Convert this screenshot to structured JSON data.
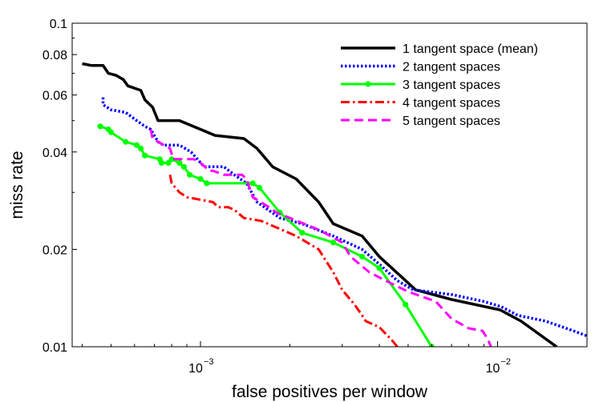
{
  "chart_data": {
    "type": "line",
    "xlabel": "false positives per window",
    "ylabel": "miss rate",
    "xscale": "log",
    "yscale": "log",
    "xlim": [
      0.00037,
      0.02
    ],
    "ylim": [
      0.01,
      0.1
    ],
    "x_ticks": [
      {
        "value": 0.001,
        "label": "10",
        "exp": "−3"
      },
      {
        "value": 0.01,
        "label": "10",
        "exp": "−2"
      }
    ],
    "y_ticks": [
      {
        "value": 0.01,
        "label": "0.01"
      },
      {
        "value": 0.02,
        "label": "0.02"
      },
      {
        "value": 0.04,
        "label": "0.04"
      },
      {
        "value": 0.06,
        "label": "0.06"
      },
      {
        "value": 0.08,
        "label": "0.08"
      },
      {
        "value": 0.1,
        "label": "0.1"
      }
    ],
    "legend_position": "top-right",
    "grid": false,
    "series": [
      {
        "name": "1 tangent space (mean)",
        "color": "#000000",
        "style": "solid",
        "width": 3.5,
        "markers": false,
        "points": [
          [
            0.0004,
            0.075
          ],
          [
            0.00043,
            0.074
          ],
          [
            0.00047,
            0.074
          ],
          [
            0.00049,
            0.07
          ],
          [
            0.00052,
            0.069
          ],
          [
            0.00055,
            0.067
          ],
          [
            0.00057,
            0.064
          ],
          [
            0.0006,
            0.063
          ],
          [
            0.00063,
            0.062
          ],
          [
            0.00065,
            0.058
          ],
          [
            0.00069,
            0.055
          ],
          [
            0.00072,
            0.05
          ],
          [
            0.00085,
            0.05
          ],
          [
            0.001,
            0.047
          ],
          [
            0.00112,
            0.045
          ],
          [
            0.0014,
            0.044
          ],
          [
            0.00155,
            0.041
          ],
          [
            0.00175,
            0.036
          ],
          [
            0.0021,
            0.033
          ],
          [
            0.0025,
            0.028
          ],
          [
            0.0028,
            0.024
          ],
          [
            0.0035,
            0.022
          ],
          [
            0.004,
            0.019
          ],
          [
            0.0053,
            0.015
          ],
          [
            0.007,
            0.014
          ],
          [
            0.0102,
            0.013
          ],
          [
            0.012,
            0.012
          ],
          [
            0.0158,
            0.01
          ]
        ]
      },
      {
        "name": "2 tangent spaces",
        "color": "#0000ff",
        "style": "dotted",
        "width": 3.5,
        "markers": false,
        "points": [
          [
            0.00047,
            0.059
          ],
          [
            0.00047,
            0.056
          ],
          [
            0.0005,
            0.054
          ],
          [
            0.00056,
            0.053
          ],
          [
            0.00061,
            0.05
          ],
          [
            0.00065,
            0.048
          ],
          [
            0.00068,
            0.047
          ],
          [
            0.00072,
            0.043
          ],
          [
            0.00075,
            0.042
          ],
          [
            0.00085,
            0.042
          ],
          [
            0.00093,
            0.04
          ],
          [
            0.00103,
            0.036
          ],
          [
            0.0012,
            0.036
          ],
          [
            0.0013,
            0.034
          ],
          [
            0.00143,
            0.032
          ],
          [
            0.00155,
            0.028
          ],
          [
            0.00185,
            0.025
          ],
          [
            0.0022,
            0.024
          ],
          [
            0.0028,
            0.022
          ],
          [
            0.0035,
            0.02
          ],
          [
            0.004,
            0.018
          ],
          [
            0.0046,
            0.016
          ],
          [
            0.0052,
            0.015
          ],
          [
            0.007,
            0.0145
          ],
          [
            0.009,
            0.0138
          ],
          [
            0.0103,
            0.0133
          ],
          [
            0.0117,
            0.0125
          ],
          [
            0.0145,
            0.012
          ],
          [
            0.018,
            0.0112
          ],
          [
            0.02,
            0.0108
          ]
        ]
      },
      {
        "name": "3 tangent spaces",
        "color": "#00ff00",
        "style": "solid",
        "width": 3,
        "markers": true,
        "points": [
          [
            0.00046,
            0.048
          ],
          [
            0.00049,
            0.047
          ],
          [
            0.0005,
            0.046
          ],
          [
            0.00056,
            0.043
          ],
          [
            0.00061,
            0.042
          ],
          [
            0.00063,
            0.041
          ],
          [
            0.00065,
            0.039
          ],
          [
            0.00073,
            0.038
          ],
          [
            0.00074,
            0.037
          ],
          [
            0.00078,
            0.037
          ],
          [
            0.0008,
            0.038
          ],
          [
            0.00085,
            0.037
          ],
          [
            0.00088,
            0.036
          ],
          [
            0.00092,
            0.034
          ],
          [
            0.001,
            0.033
          ],
          [
            0.00105,
            0.032
          ],
          [
            0.0015,
            0.032
          ],
          [
            0.00158,
            0.031
          ],
          [
            0.00185,
            0.026
          ],
          [
            0.0022,
            0.0225
          ],
          [
            0.0028,
            0.021
          ],
          [
            0.0035,
            0.019
          ],
          [
            0.004,
            0.0175
          ],
          [
            0.0049,
            0.0135
          ],
          [
            0.006,
            0.01
          ]
        ]
      },
      {
        "name": "4 tangent spaces",
        "color": "#ff0000",
        "style": "dashdot",
        "width": 3,
        "markers": false,
        "points": [
          [
            0.00079,
            0.034
          ],
          [
            0.0008,
            0.032
          ],
          [
            0.00085,
            0.03
          ],
          [
            0.0009,
            0.029
          ],
          [
            0.0011,
            0.028
          ],
          [
            0.00115,
            0.027
          ],
          [
            0.00124,
            0.027
          ],
          [
            0.0013,
            0.0265
          ],
          [
            0.0014,
            0.025
          ],
          [
            0.0016,
            0.0245
          ],
          [
            0.0021,
            0.022
          ],
          [
            0.0025,
            0.02
          ],
          [
            0.0028,
            0.017
          ],
          [
            0.003,
            0.015
          ],
          [
            0.0033,
            0.0135
          ],
          [
            0.0035,
            0.0125
          ],
          [
            0.0036,
            0.012
          ],
          [
            0.004,
            0.0115
          ],
          [
            0.0044,
            0.0105
          ],
          [
            0.0046,
            0.01
          ]
        ]
      },
      {
        "name": "5 tangent spaces",
        "color": "#ff00ff",
        "style": "dashed",
        "width": 3,
        "markers": false,
        "points": [
          [
            0.00068,
            0.047
          ],
          [
            0.00069,
            0.044
          ],
          [
            0.00072,
            0.043
          ],
          [
            0.00079,
            0.041
          ],
          [
            0.00081,
            0.038
          ],
          [
            0.0009,
            0.038
          ],
          [
            0.00095,
            0.038
          ],
          [
            0.001,
            0.037
          ],
          [
            0.00107,
            0.035
          ],
          [
            0.0011,
            0.035
          ],
          [
            0.0012,
            0.034
          ],
          [
            0.00138,
            0.034
          ],
          [
            0.00143,
            0.033
          ],
          [
            0.0015,
            0.029
          ],
          [
            0.0017,
            0.027
          ],
          [
            0.0018,
            0.026
          ],
          [
            0.002,
            0.025
          ],
          [
            0.0025,
            0.023
          ],
          [
            0.003,
            0.021
          ],
          [
            0.0032,
            0.019
          ],
          [
            0.0037,
            0.017
          ],
          [
            0.0042,
            0.016
          ],
          [
            0.005,
            0.0148
          ],
          [
            0.0062,
            0.0138
          ],
          [
            0.007,
            0.0122
          ],
          [
            0.008,
            0.0114
          ],
          [
            0.0089,
            0.0112
          ],
          [
            0.0093,
            0.0105
          ],
          [
            0.0095,
            0.01
          ]
        ]
      }
    ]
  }
}
